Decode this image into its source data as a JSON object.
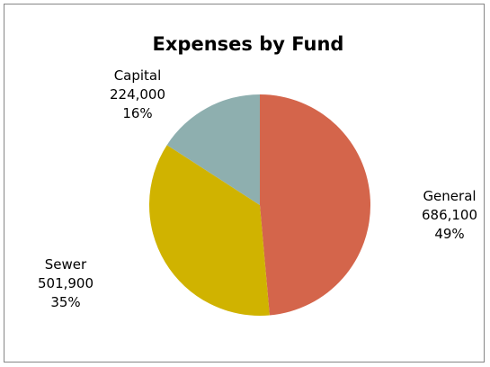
{
  "chart_data": {
    "type": "pie",
    "title": "Expenses by Fund",
    "start_angle_deg": 0,
    "direction": "clockwise",
    "slices": [
      {
        "name": "General",
        "value": 686100,
        "value_label": "686,100",
        "percent_label": "49%",
        "color": "#D4654B",
        "label_side": "right"
      },
      {
        "name": "Sewer",
        "value": 501900,
        "value_label": "501,900",
        "percent_label": "35%",
        "color": "#D0B300",
        "label_side": "left"
      },
      {
        "name": "Capital",
        "value": 224000,
        "value_label": "224,000",
        "percent_label": "16%",
        "color": "#8EAFAF",
        "label_side": "top-left"
      }
    ],
    "legend": "none",
    "border_color": "#868686"
  }
}
